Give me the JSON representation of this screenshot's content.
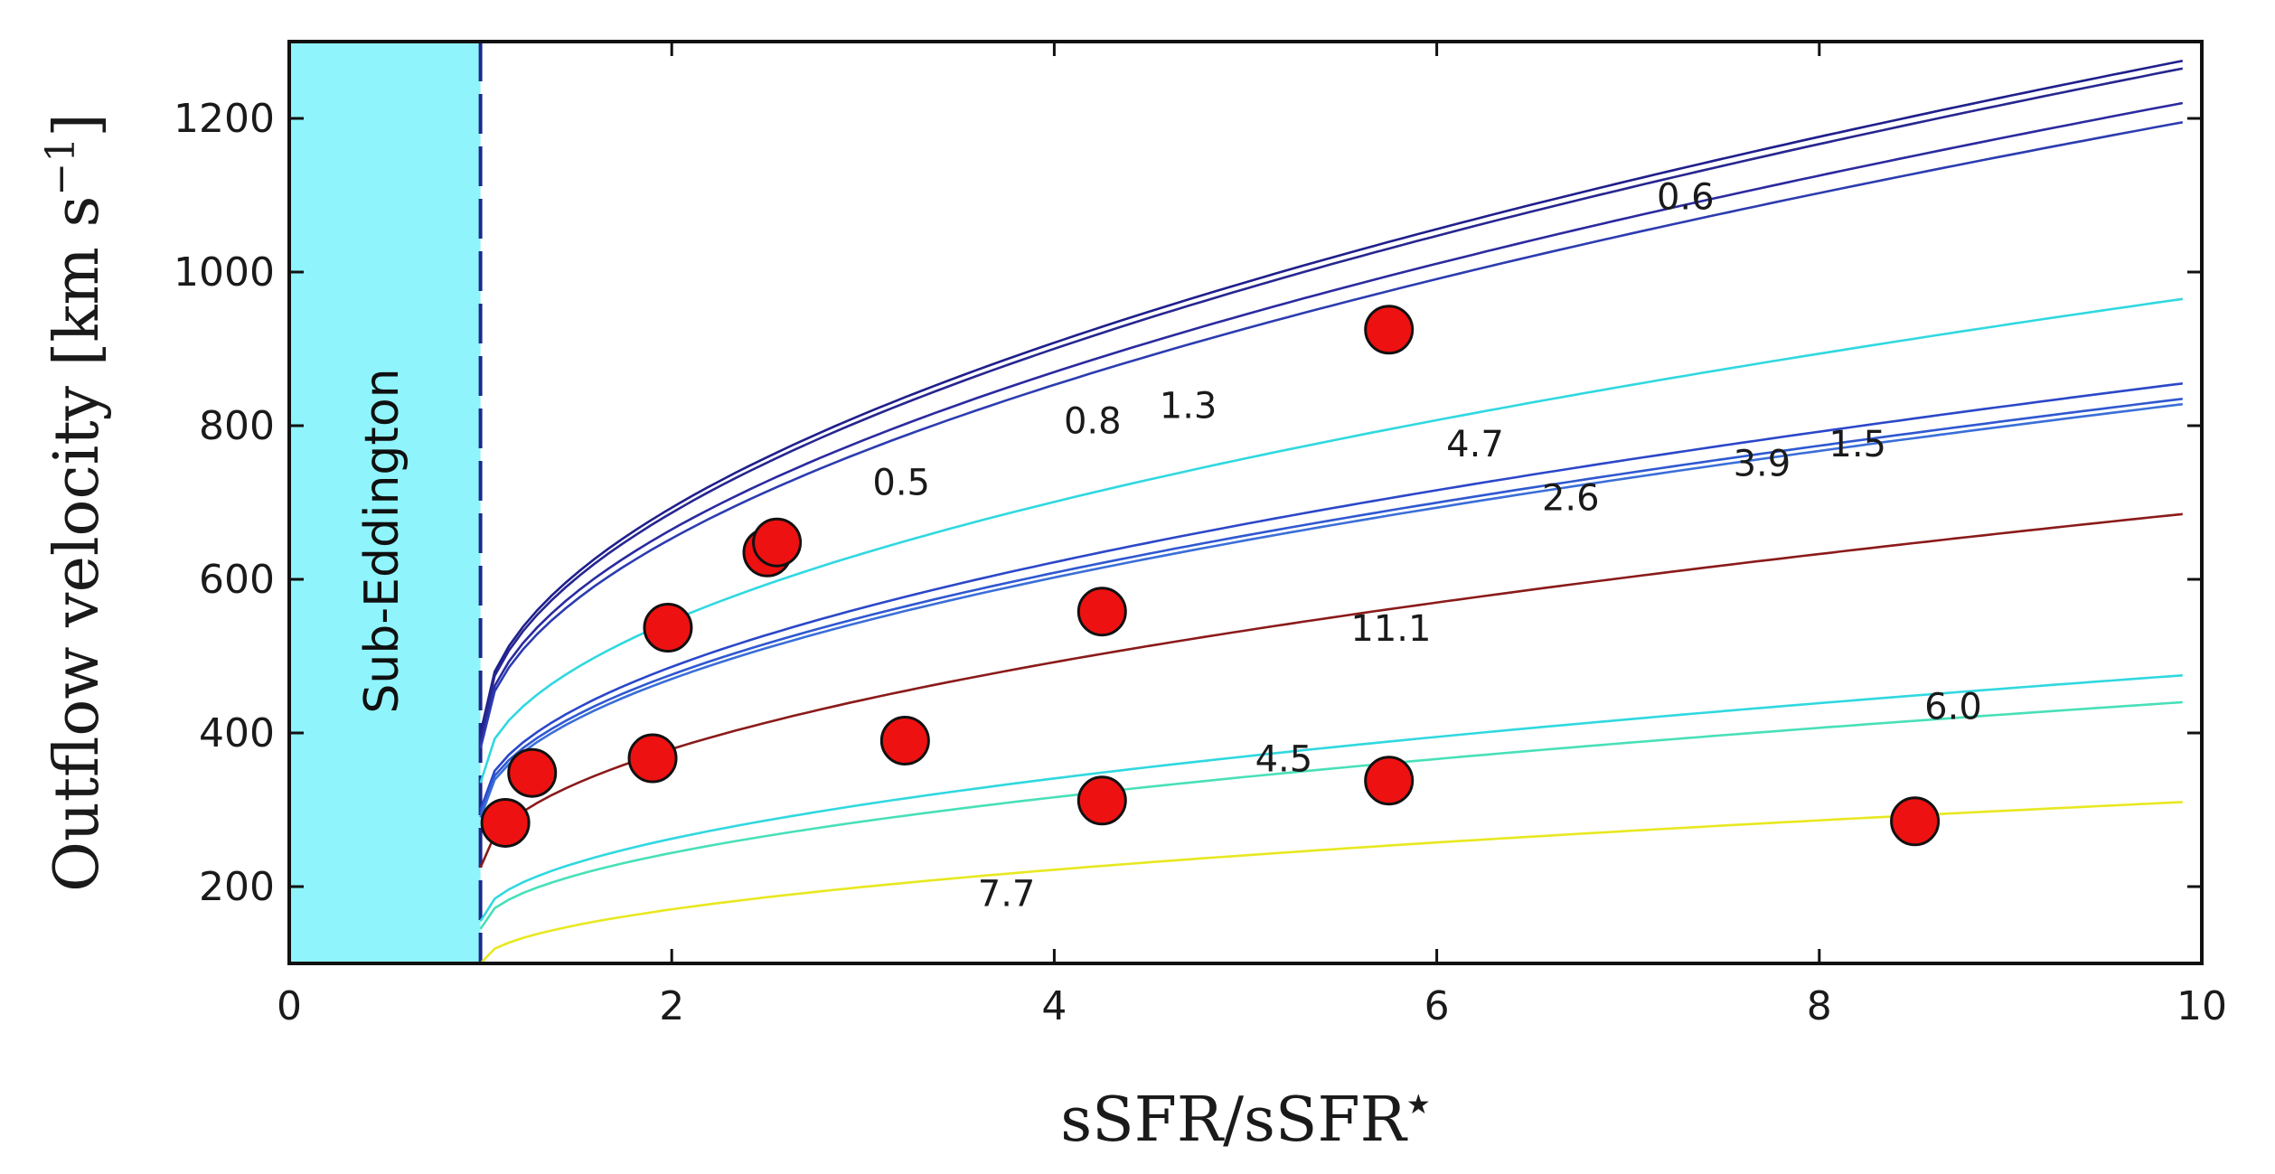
{
  "chart_data": {
    "type": "line",
    "xlabel": "sSFR/sSFR",
    "xlabel_star": "★",
    "ylabel": "Outflow velocity [km s",
    "ylabel_sup": "−1",
    "ylabel_close": "]",
    "xlim": [
      0,
      10
    ],
    "ylim": [
      100,
      1300
    ],
    "xticks": [
      0,
      2,
      4,
      6,
      8,
      10
    ],
    "yticks": [
      200,
      400,
      600,
      800,
      1000,
      1200
    ],
    "grid": false,
    "shaded_region": {
      "x": [
        0,
        1
      ],
      "label": "Sub-Eddington",
      "color": "#8ff4fb"
    },
    "boundary": {
      "x": 1,
      "style": "dashed",
      "color": "#1a2a8a"
    },
    "colors": {
      "navy": "#1f1f8c",
      "blue": "#2b47c8",
      "cyan": "#30d8e0",
      "teal": "#48e0b8",
      "darkred": "#8b1a1a",
      "yellow": "#e8e820",
      "marker": "#ee1111"
    },
    "series": [
      {
        "name": "0.6",
        "color": "#1f1f8c",
        "start_y": 400,
        "end_y": 1275
      },
      {
        "name": "0.5",
        "color": "#262690",
        "start_y": 395,
        "end_y": 1265
      },
      {
        "name": "0.8",
        "color": "#2a2aa0",
        "start_y": 385,
        "end_y": 1220
      },
      {
        "name": "1.3",
        "color": "#2c3cb0",
        "start_y": 380,
        "end_y": 1195
      },
      {
        "name": "4.7",
        "color": "#30d8e0",
        "start_y": 335,
        "end_y": 965
      },
      {
        "name": "1.5",
        "color": "#2b47c8",
        "start_y": 300,
        "end_y": 855
      },
      {
        "name": "3.9",
        "color": "#2f58d0",
        "start_y": 295,
        "end_y": 835
      },
      {
        "name": "2.6",
        "color": "#3a6ed8",
        "start_y": 290,
        "end_y": 828
      },
      {
        "name": "11.1",
        "color": "#8b1a1a",
        "start_y": 225,
        "end_y": 685
      },
      {
        "name": "6.0",
        "color": "#30d8e0",
        "start_y": 155,
        "end_y": 475
      },
      {
        "name": "4.5",
        "color": "#48e0b8",
        "start_y": 145,
        "end_y": 440
      },
      {
        "name": "7.7",
        "color": "#e8e820",
        "start_y": 100,
        "end_y": 310
      }
    ],
    "curve_labels": [
      {
        "text": "0.6",
        "x": 7.15,
        "y": 1082
      },
      {
        "text": "0.5",
        "x": 3.05,
        "y": 710
      },
      {
        "text": "0.8",
        "x": 4.05,
        "y": 790
      },
      {
        "text": "1.3",
        "x": 4.55,
        "y": 810
      },
      {
        "text": "4.7",
        "x": 6.05,
        "y": 760
      },
      {
        "text": "2.6",
        "x": 6.55,
        "y": 690
      },
      {
        "text": "3.9",
        "x": 7.55,
        "y": 735
      },
      {
        "text": "1.5",
        "x": 8.05,
        "y": 760
      },
      {
        "text": "11.1",
        "x": 5.55,
        "y": 520
      },
      {
        "text": "6.0",
        "x": 8.55,
        "y": 418
      },
      {
        "text": "4.5",
        "x": 5.05,
        "y": 350
      },
      {
        "text": "7.7",
        "x": 3.6,
        "y": 175
      }
    ],
    "points": [
      {
        "x": 1.13,
        "y": 283
      },
      {
        "x": 1.27,
        "y": 348
      },
      {
        "x": 1.9,
        "y": 367
      },
      {
        "x": 1.98,
        "y": 537
      },
      {
        "x": 2.5,
        "y": 635
      },
      {
        "x": 2.55,
        "y": 648
      },
      {
        "x": 3.22,
        "y": 390
      },
      {
        "x": 4.25,
        "y": 558
      },
      {
        "x": 4.25,
        "y": 312
      },
      {
        "x": 5.75,
        "y": 925
      },
      {
        "x": 5.75,
        "y": 338
      },
      {
        "x": 8.5,
        "y": 285
      }
    ]
  }
}
